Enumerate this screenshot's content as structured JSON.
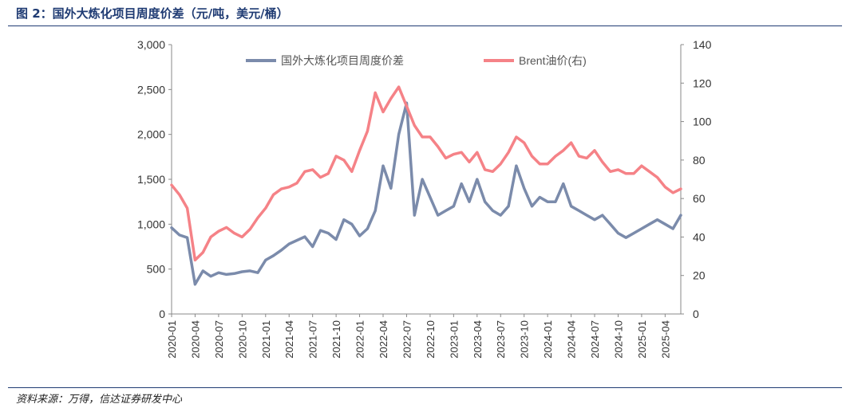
{
  "figure": {
    "title": "图 2：国外大炼化项目周度价差（元/吨，美元/桶）",
    "source": "资料来源：万得，信达证券研发中心"
  },
  "colors": {
    "series1": "#7b8bab",
    "series2": "#f58287",
    "title": "#1f3b73",
    "axis": "#888888"
  },
  "chart_data": {
    "type": "line",
    "title": "",
    "xlabel": "",
    "ylabel": "",
    "x_ticks": [
      "2020-01",
      "2020-04",
      "2020-07",
      "2020-10",
      "2021-01",
      "2021-04",
      "2021-07",
      "2021-10",
      "2022-01",
      "2022-04",
      "2022-07",
      "2022-10",
      "2023-01",
      "2023-04",
      "2023-07",
      "2023-10",
      "2024-01",
      "2024-04",
      "2024-07",
      "2024-10",
      "2025-01",
      "2025-04"
    ],
    "x_range": [
      "2020-01",
      "2025-06"
    ],
    "y_left": {
      "ylim": [
        0,
        3000
      ],
      "ticks": [
        "0",
        "500",
        "1,000",
        "1,500",
        "2,000",
        "2,500",
        "3,000"
      ]
    },
    "y_right": {
      "ylim": [
        0,
        140
      ],
      "ticks": [
        "0",
        "20",
        "40",
        "60",
        "80",
        "100",
        "120",
        "140"
      ]
    },
    "grid": false,
    "legend": "top",
    "series": [
      {
        "name": "国外大炼化项目周度价差",
        "axis": "left",
        "x": [
          "2020-01",
          "2020-02",
          "2020-03",
          "2020-04",
          "2020-05",
          "2020-06",
          "2020-07",
          "2020-08",
          "2020-09",
          "2020-10",
          "2020-11",
          "2020-12",
          "2021-01",
          "2021-02",
          "2021-03",
          "2021-04",
          "2021-05",
          "2021-06",
          "2021-07",
          "2021-08",
          "2021-09",
          "2021-10",
          "2021-11",
          "2021-12",
          "2022-01",
          "2022-02",
          "2022-03",
          "2022-04",
          "2022-05",
          "2022-06",
          "2022-07",
          "2022-08",
          "2022-09",
          "2022-10",
          "2022-11",
          "2022-12",
          "2023-01",
          "2023-02",
          "2023-03",
          "2023-04",
          "2023-05",
          "2023-06",
          "2023-07",
          "2023-08",
          "2023-09",
          "2023-10",
          "2023-11",
          "2023-12",
          "2024-01",
          "2024-02",
          "2024-03",
          "2024-04",
          "2024-05",
          "2024-06",
          "2024-07",
          "2024-08",
          "2024-09",
          "2024-10",
          "2024-11",
          "2024-12",
          "2025-01",
          "2025-02",
          "2025-03",
          "2025-04",
          "2025-05",
          "2025-06"
        ],
        "values": [
          960,
          880,
          850,
          330,
          480,
          420,
          460,
          440,
          450,
          470,
          480,
          460,
          600,
          650,
          710,
          780,
          820,
          860,
          750,
          930,
          900,
          830,
          1050,
          1000,
          870,
          950,
          1150,
          1650,
          1400,
          2000,
          2350,
          1100,
          1500,
          1300,
          1100,
          1150,
          1200,
          1450,
          1250,
          1500,
          1250,
          1150,
          1100,
          1200,
          1650,
          1400,
          1200,
          1300,
          1250,
          1250,
          1450,
          1200,
          1150,
          1100,
          1050,
          1100,
          1000,
          900,
          850,
          900,
          950,
          1000,
          1050,
          1000,
          950,
          1100
        ]
      },
      {
        "name": "Brent油价(右)",
        "axis": "right",
        "x": [
          "2020-01",
          "2020-02",
          "2020-03",
          "2020-04",
          "2020-05",
          "2020-06",
          "2020-07",
          "2020-08",
          "2020-09",
          "2020-10",
          "2020-11",
          "2020-12",
          "2021-01",
          "2021-02",
          "2021-03",
          "2021-04",
          "2021-05",
          "2021-06",
          "2021-07",
          "2021-08",
          "2021-09",
          "2021-10",
          "2021-11",
          "2021-12",
          "2022-01",
          "2022-02",
          "2022-03",
          "2022-04",
          "2022-05",
          "2022-06",
          "2022-07",
          "2022-08",
          "2022-09",
          "2022-10",
          "2022-11",
          "2022-12",
          "2023-01",
          "2023-02",
          "2023-03",
          "2023-04",
          "2023-05",
          "2023-06",
          "2023-07",
          "2023-08",
          "2023-09",
          "2023-10",
          "2023-11",
          "2023-12",
          "2024-01",
          "2024-02",
          "2024-03",
          "2024-04",
          "2024-05",
          "2024-06",
          "2024-07",
          "2024-08",
          "2024-09",
          "2024-10",
          "2024-11",
          "2024-12",
          "2025-01",
          "2025-02",
          "2025-03",
          "2025-04",
          "2025-05",
          "2025-06"
        ],
        "values": [
          67,
          62,
          55,
          28,
          32,
          40,
          43,
          45,
          42,
          40,
          44,
          50,
          55,
          62,
          65,
          66,
          68,
          74,
          75,
          71,
          73,
          82,
          80,
          74,
          85,
          95,
          115,
          105,
          112,
          118,
          108,
          98,
          92,
          92,
          87,
          81,
          83,
          84,
          79,
          84,
          75,
          74,
          78,
          84,
          92,
          89,
          82,
          78,
          78,
          82,
          85,
          89,
          82,
          81,
          85,
          79,
          74,
          75,
          73,
          73,
          77,
          74,
          71,
          66,
          63,
          65
        ]
      }
    ]
  }
}
